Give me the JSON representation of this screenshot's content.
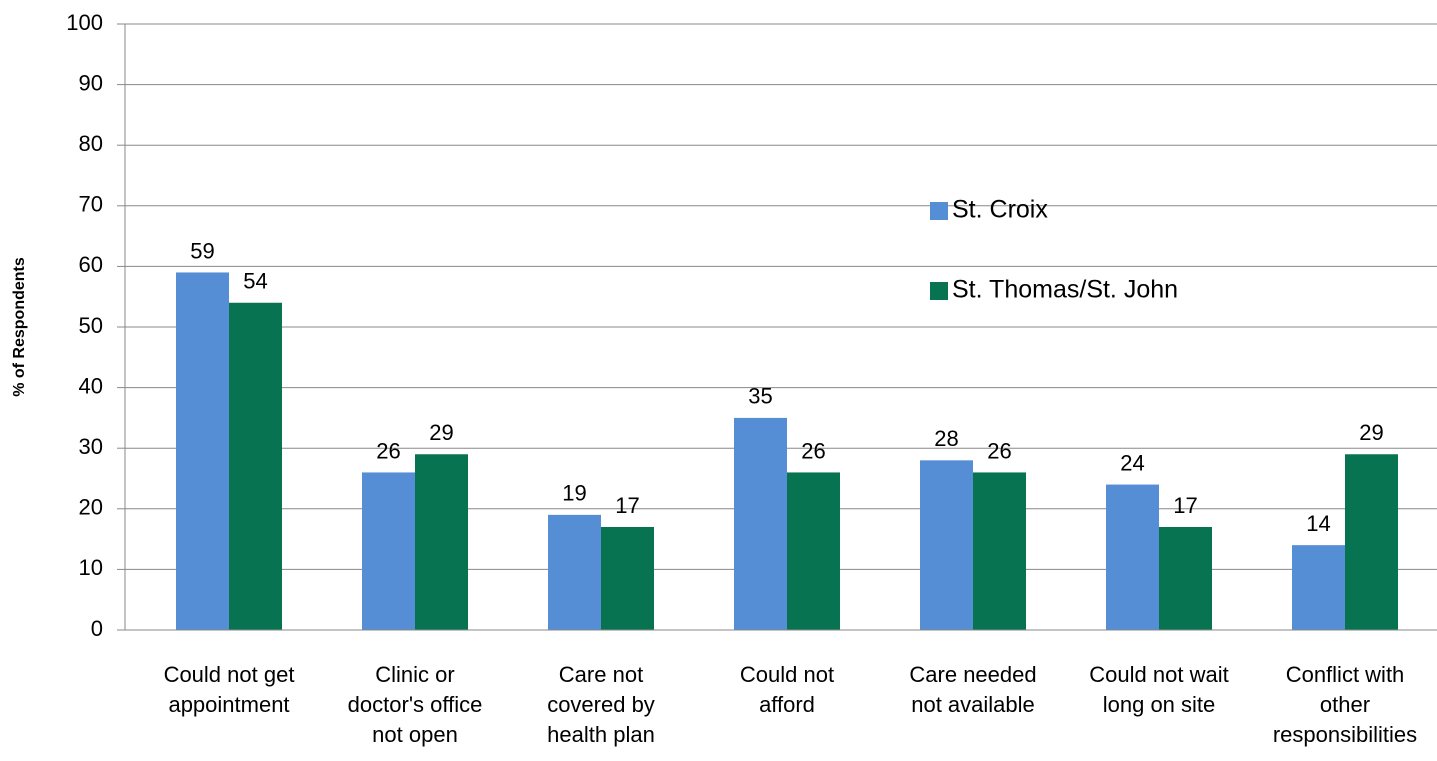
{
  "chart_data": {
    "type": "bar",
    "y_label": "% of Respondents",
    "categories": [
      "Could not get\nappointment",
      "Clinic or\ndoctor's office\nnot open",
      "Care not\ncovered by\nhealth plan",
      "Could not\nafford",
      "Care needed\nnot available",
      "Could not wait\nlong on site",
      "Conflict with\nother\nresponsibilities"
    ],
    "series": [
      {
        "name": "St. Croix",
        "color": "#558ed5",
        "values": [
          59,
          26,
          19,
          35,
          28,
          24,
          14
        ]
      },
      {
        "name": "St. Thomas/St. John",
        "color": "#077350",
        "values": [
          54,
          29,
          17,
          26,
          26,
          17,
          29
        ]
      }
    ],
    "ylim": [
      0,
      100
    ],
    "yticks": [
      0,
      10,
      20,
      30,
      40,
      50,
      60,
      70,
      80,
      90,
      100
    ],
    "grid": true,
    "legend": "right"
  }
}
